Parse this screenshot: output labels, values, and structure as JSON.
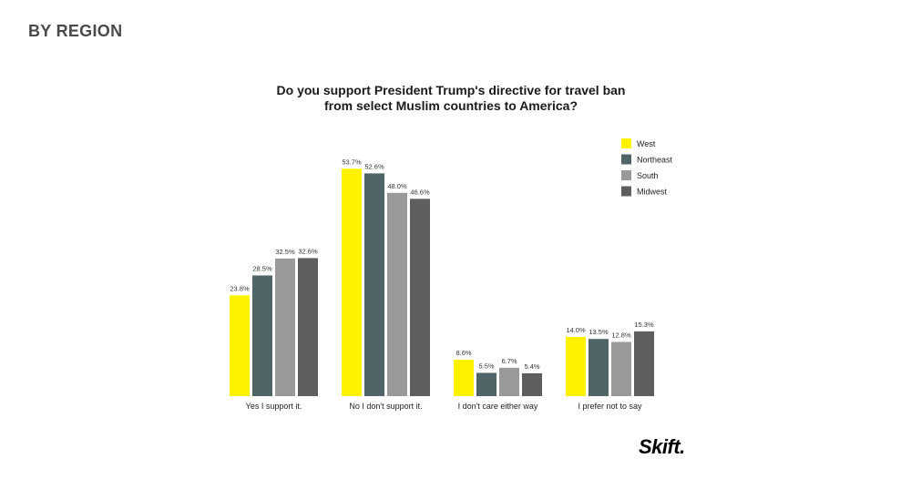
{
  "header": {
    "section_label": "BY REGION"
  },
  "brand": {
    "logo_text": "Skift."
  },
  "chart_data": {
    "type": "bar",
    "title_lines": [
      "Do you support President Trump's directive for travel ban",
      "from select Muslim countries to America?"
    ],
    "categories": [
      "Yes I support it.",
      "No I don't support it.",
      "I don't care either way",
      "I prefer not to say"
    ],
    "series": [
      {
        "name": "West",
        "values": [
          23.8,
          53.7,
          8.6,
          14.0
        ],
        "labels": [
          "23.8%",
          "53.7%",
          "8.6%",
          "14.0%"
        ],
        "color": "#FFF200"
      },
      {
        "name": "Northeast",
        "values": [
          28.5,
          52.6,
          5.5,
          13.5
        ],
        "labels": [
          "28.5%",
          "52.6%",
          "5.5%",
          "13.5%"
        ],
        "color": "#4F6567"
      },
      {
        "name": "South",
        "values": [
          32.5,
          48.0,
          6.7,
          12.8
        ],
        "labels": [
          "32.5%",
          "48.0%",
          "6.7%",
          "12.8%"
        ],
        "color": "#999999"
      },
      {
        "name": "Midwest",
        "values": [
          32.6,
          46.6,
          5.4,
          15.3
        ],
        "labels": [
          "32.6%",
          "46.6%",
          "5.4%",
          "15.3%"
        ],
        "color": "#5E5E5E"
      }
    ],
    "legend_position": "top-right",
    "grid": false
  }
}
